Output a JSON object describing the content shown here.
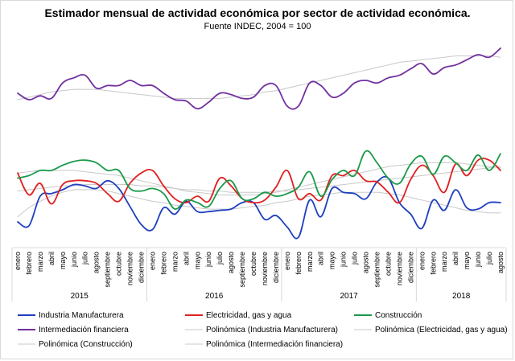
{
  "chart_data": {
    "type": "line",
    "title": "Estimador mensual de actividad económica por sector de actividad económica.",
    "subtitle": "Fuente INDEC, 2004  = 100",
    "xlabel": "",
    "ylabel": "",
    "categories": [
      "enero",
      "febrero",
      "marzo",
      "abril",
      "mayo",
      "junio",
      "julio",
      "agosto",
      "septiembre",
      "octubre",
      "noviembre",
      "diciembre",
      "enero",
      "febrero",
      "marzo",
      "abril",
      "mayo",
      "junio",
      "julio",
      "agosto",
      "septiembre",
      "octubre",
      "noviembre",
      "diciembre",
      "enero",
      "febrero",
      "marzo",
      "abril",
      "mayo",
      "junio",
      "julio",
      "agosto",
      "septiembre",
      "octubre",
      "noviembre",
      "diciembre",
      "enero",
      "febrero",
      "marzo",
      "abril",
      "mayo",
      "junio",
      "julio",
      "agosto"
    ],
    "years": [
      {
        "label": "2015",
        "start": 0,
        "end": 11
      },
      {
        "label": "2016",
        "start": 12,
        "end": 23
      },
      {
        "label": "2017",
        "start": 24,
        "end": 35
      },
      {
        "label": "2018",
        "start": 36,
        "end": 43
      }
    ],
    "ylim": [
      0,
      100
    ],
    "series": [
      {
        "name": "Industria Manufacturera",
        "color": "#1f3fbf",
        "values": [
          40,
          37,
          60,
          62,
          65,
          69,
          68,
          66,
          72,
          66,
          52,
          38,
          34,
          51,
          46,
          56,
          48,
          48,
          49,
          50,
          55,
          55,
          42,
          45,
          36,
          28,
          57,
          44,
          66,
          63,
          62,
          58,
          71,
          74,
          55,
          46,
          35,
          57,
          49,
          65,
          51,
          50,
          55,
          55
        ]
      },
      {
        "name": "Electricidad, gas y agua",
        "color": "#e02020",
        "values": [
          78,
          61,
          70,
          54,
          69,
          72,
          72,
          70,
          62,
          56,
          70,
          78,
          80,
          68,
          58,
          55,
          60,
          56,
          74,
          68,
          58,
          55,
          57,
          67,
          80,
          58,
          62,
          57,
          76,
          76,
          80,
          72,
          71,
          63,
          55,
          73,
          84,
          76,
          63,
          85,
          76,
          88,
          88,
          80
        ]
      },
      {
        "name": "Construcción",
        "color": "#1a9a4a",
        "values": [
          74,
          76,
          80,
          80,
          84,
          87,
          88,
          86,
          80,
          80,
          66,
          64,
          66,
          62,
          50,
          57,
          55,
          52,
          66,
          72,
          58,
          58,
          63,
          60,
          62,
          67,
          79,
          60,
          73,
          80,
          76,
          95,
          86,
          74,
          70,
          85,
          91,
          77,
          91,
          86,
          80,
          92,
          80,
          93
        ]
      },
      {
        "name": "Intermediación financiera",
        "color": "#7030a0",
        "values": [
          140,
          135,
          138,
          136,
          148,
          152,
          154,
          144,
          146,
          146,
          150,
          146,
          146,
          140,
          135,
          134,
          128,
          133,
          140,
          139,
          136,
          137,
          146,
          146,
          130,
          130,
          148,
          146,
          137,
          140,
          148,
          150,
          148,
          152,
          154,
          159,
          163,
          155,
          160,
          162,
          166,
          170,
          168,
          175
        ]
      },
      {
        "name": "Polinómica (Industria Manufacturera)",
        "color": "#c8c8c8",
        "values": [
          44,
          51,
          56,
          60,
          63,
          65,
          65,
          65,
          64,
          62,
          60,
          58,
          56,
          55,
          53,
          52,
          51,
          50,
          50,
          50,
          51,
          52,
          53,
          55,
          56,
          58,
          60,
          61,
          62,
          63,
          63,
          63,
          63,
          62,
          61,
          59,
          57,
          55,
          53,
          51,
          49,
          48,
          47,
          47
        ]
      },
      {
        "name": "Polinómica (Electricidad, gas y agua)",
        "color": "#c8c8c8",
        "values": [
          64,
          65,
          66,
          67,
          68,
          68,
          69,
          69,
          69,
          69,
          69,
          68,
          68,
          67,
          66,
          65,
          65,
          64,
          64,
          63,
          63,
          63,
          63,
          64,
          64,
          65,
          66,
          67,
          68,
          69,
          70,
          71,
          72,
          73,
          74,
          75,
          76,
          77,
          78,
          79,
          80,
          81,
          82,
          83
        ]
      },
      {
        "name": "Polinómica (Construcción)",
        "color": "#c8c8c8",
        "values": [
          78,
          79,
          80,
          80,
          80,
          80,
          79,
          78,
          77,
          76,
          74,
          72,
          70,
          68,
          66,
          64,
          63,
          62,
          61,
          61,
          61,
          61,
          62,
          63,
          65,
          67,
          69,
          71,
          73,
          75,
          77,
          79,
          81,
          83,
          84,
          85,
          86,
          86,
          86,
          86,
          85,
          84,
          83,
          82
        ]
      },
      {
        "name": "Polinómica (Intermediación financiera)",
        "color": "#c8c8c8",
        "values": [
          135,
          137,
          139,
          141,
          142,
          143,
          143,
          143,
          142,
          141,
          140,
          139,
          138,
          137,
          136,
          136,
          136,
          136,
          136,
          137,
          138,
          139,
          141,
          142,
          144,
          146,
          148,
          150,
          152,
          154,
          156,
          158,
          160,
          162,
          164,
          165,
          166,
          167,
          168,
          169,
          169,
          169,
          169,
          168
        ]
      }
    ]
  },
  "legend": [
    "Industria Manufacturera",
    "Electricidad, gas y agua",
    "Construcción",
    "Intermediación financiera",
    "Polinómica (Industria Manufacturera)",
    "Polinómica (Electricidad, gas y agua)",
    "Polinómica (Construcción)",
    "Polinómica (Intermediación financiera)"
  ]
}
